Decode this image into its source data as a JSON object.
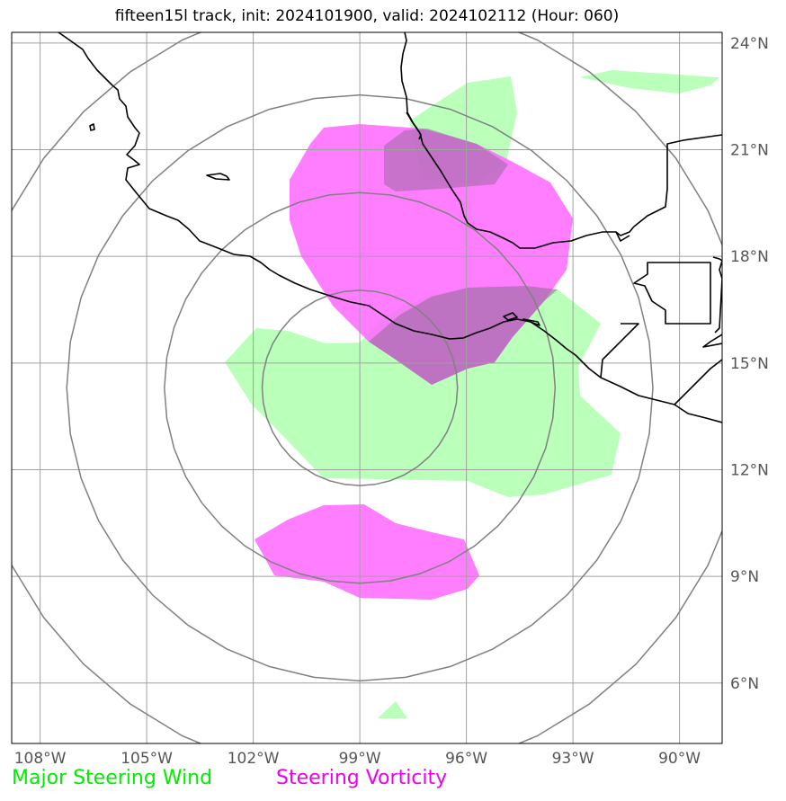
{
  "title": "fifteen15l track, init: 2024101900, valid: 2024102112 (Hour: 060)",
  "map": {
    "lon_range": [
      -108.8,
      -88.8
    ],
    "lat_range": [
      4.3,
      24.3
    ],
    "lon_ticks": [
      {
        "value": -108,
        "label": "108°W"
      },
      {
        "value": -105,
        "label": "105°W"
      },
      {
        "value": -102,
        "label": "102°W"
      },
      {
        "value": -99,
        "label": "99°W"
      },
      {
        "value": -96,
        "label": "96°W"
      },
      {
        "value": -93,
        "label": "93°W"
      },
      {
        "value": -90,
        "label": "90°W"
      }
    ],
    "lat_ticks": [
      {
        "value": 6,
        "label": "6°N"
      },
      {
        "value": 9,
        "label": "9°N"
      },
      {
        "value": 12,
        "label": "12°N"
      },
      {
        "value": 15,
        "label": "15°N"
      },
      {
        "value": 18,
        "label": "18°N"
      },
      {
        "value": 21,
        "label": "21°N"
      },
      {
        "value": 24,
        "label": "24°N"
      }
    ],
    "range_rings": {
      "center_lon": -99,
      "center_lat": 14.3,
      "radii_deg": [
        2.75,
        5.5,
        8.25,
        11.0
      ]
    },
    "colors": {
      "wind": "#b3ffb3",
      "vorticity": "#ff66ff",
      "coast": "#000000",
      "grid": "#a0a0a0",
      "ring": "#808080"
    }
  },
  "legend": {
    "wind_label": "Major Steering Wind",
    "wind_color": "#00ee00",
    "vorticity_label": "Steering Vorticity",
    "vorticity_color": "#ee00ee"
  }
}
